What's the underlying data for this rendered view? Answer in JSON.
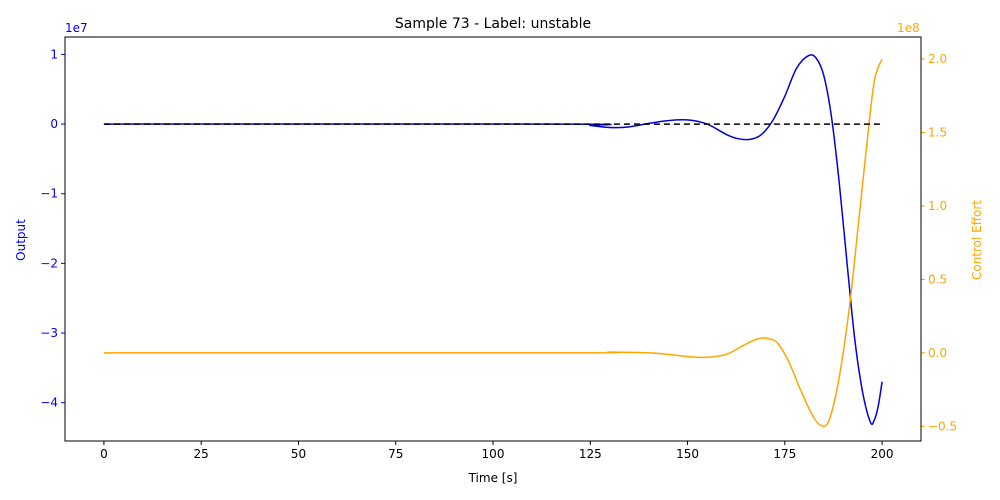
{
  "chart_data": {
    "type": "line",
    "title": "Sample 73 - Label: unstable",
    "xlabel": "Time [s]",
    "ylabel_left": "Output",
    "ylabel_right": "Control Effort",
    "left_offset_label": "1e7",
    "right_offset_label": "1e8",
    "xlim": [
      -10,
      210
    ],
    "ylim_left": [
      -4.55,
      1.25
    ],
    "ylim_right": [
      -0.6,
      2.15
    ],
    "xticks": [
      0,
      25,
      50,
      75,
      100,
      125,
      150,
      175,
      200
    ],
    "xtick_labels": [
      "0",
      "25",
      "50",
      "75",
      "100",
      "125",
      "150",
      "175",
      "200"
    ],
    "yticks_left": [
      1,
      0,
      -1,
      -2,
      -3,
      -4
    ],
    "ytick_labels_left": [
      "1",
      "0",
      "−1",
      "−2",
      "−3",
      "−4"
    ],
    "yticks_right": [
      2.0,
      1.5,
      1.0,
      0.5,
      0.0,
      -0.5
    ],
    "ytick_labels_right": [
      "2.0",
      "1.5",
      "1.0",
      "0.5",
      "0.0",
      "−0.5"
    ],
    "grid": false,
    "colors": {
      "output": "#0000dd",
      "control": "#ffa500",
      "reference": "#000000",
      "left_axis": "#0000ff",
      "right_axis": "#ffa500"
    },
    "series": [
      {
        "axis": "left",
        "style": "solid",
        "x": [
          0,
          120,
          125,
          130,
          135,
          140,
          145,
          150,
          155,
          160,
          163,
          166,
          169,
          172,
          175,
          178,
          181,
          183,
          185,
          187,
          189,
          191,
          193,
          195,
          197,
          198,
          199,
          200
        ],
        "y": [
          0,
          0,
          -0.02,
          -0.05,
          -0.04,
          0.01,
          0.05,
          0.06,
          0.0,
          -0.15,
          -0.21,
          -0.22,
          -0.15,
          0.06,
          0.4,
          0.8,
          0.98,
          0.95,
          0.7,
          0.1,
          -0.85,
          -2.0,
          -3.1,
          -3.85,
          -4.28,
          -4.25,
          -4.05,
          -3.7
        ]
      },
      {
        "axis": "right",
        "style": "solid",
        "x": [
          0,
          120,
          130,
          140,
          145,
          150,
          155,
          160,
          165,
          168,
          170,
          173,
          176,
          179,
          182,
          184,
          186,
          188,
          190,
          192,
          194,
          196,
          198,
          200
        ],
        "y": [
          0,
          0,
          0.005,
          0.0,
          -0.01,
          -0.025,
          -0.03,
          -0.01,
          0.06,
          0.095,
          0.1,
          0.07,
          -0.06,
          -0.25,
          -0.42,
          -0.49,
          -0.48,
          -0.3,
          0.0,
          0.4,
          0.9,
          1.4,
          1.85,
          2.0
        ]
      },
      {
        "axis": "left",
        "style": "dashed",
        "x": [
          0,
          200
        ],
        "y": [
          0,
          0
        ]
      }
    ]
  }
}
